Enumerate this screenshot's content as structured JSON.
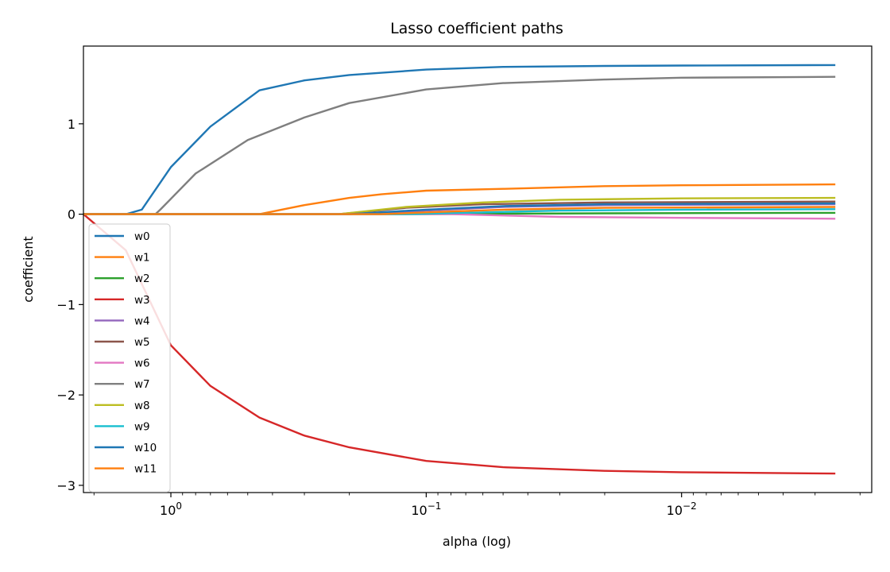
{
  "chart_data": {
    "type": "line",
    "title": "Lasso coefficient paths",
    "xlabel": "alpha (log)",
    "ylabel": "coefficient",
    "x_scale": "log",
    "x_axis_inverted": true,
    "xlim": [
      2.2,
      0.0018
    ],
    "ylim": [
      -3.08,
      1.86
    ],
    "xticks": [
      {
        "value": 1,
        "label": "10^0"
      },
      {
        "value": 0.1,
        "label": "10^-1"
      },
      {
        "value": 0.01,
        "label": "10^-2"
      }
    ],
    "yticks": [
      {
        "value": 1,
        "label": "1"
      },
      {
        "value": 0,
        "label": "0"
      },
      {
        "value": -1,
        "label": "−1"
      },
      {
        "value": -2,
        "label": "−2"
      },
      {
        "value": -3,
        "label": "−3"
      }
    ],
    "grid": false,
    "legend": {
      "position": "left",
      "fontsize": "small"
    },
    "series": [
      {
        "name": "w0",
        "color": "#1f77b4",
        "points": [
          [
            2.2,
            0
          ],
          [
            1.5,
            0
          ],
          [
            1.3,
            0.05
          ],
          [
            1.0,
            0.52
          ],
          [
            0.7,
            0.97
          ],
          [
            0.45,
            1.37
          ],
          [
            0.3,
            1.48
          ],
          [
            0.2,
            1.54
          ],
          [
            0.1,
            1.6
          ],
          [
            0.05,
            1.63
          ],
          [
            0.02,
            1.64
          ],
          [
            0.01,
            1.645
          ],
          [
            0.0025,
            1.65
          ]
        ]
      },
      {
        "name": "w1",
        "color": "#ff7f0e",
        "points": [
          [
            2.2,
            0
          ],
          [
            0.45,
            0
          ],
          [
            0.3,
            0.1
          ],
          [
            0.2,
            0.18
          ],
          [
            0.15,
            0.22
          ],
          [
            0.1,
            0.26
          ],
          [
            0.05,
            0.28
          ],
          [
            0.02,
            0.31
          ],
          [
            0.01,
            0.32
          ],
          [
            0.0025,
            0.33
          ]
        ]
      },
      {
        "name": "w2",
        "color": "#2ca02c",
        "points": [
          [
            2.2,
            0
          ],
          [
            0.1,
            0
          ],
          [
            0.05,
            0.005
          ],
          [
            0.02,
            0.01
          ],
          [
            0.0025,
            0.015
          ]
        ]
      },
      {
        "name": "w3",
        "color": "#d62728",
        "points": [
          [
            2.2,
            0
          ],
          [
            1.5,
            -0.4
          ],
          [
            1.0,
            -1.45
          ],
          [
            0.7,
            -1.9
          ],
          [
            0.45,
            -2.25
          ],
          [
            0.3,
            -2.45
          ],
          [
            0.2,
            -2.58
          ],
          [
            0.1,
            -2.73
          ],
          [
            0.05,
            -2.8
          ],
          [
            0.02,
            -2.84
          ],
          [
            0.01,
            -2.855
          ],
          [
            0.0025,
            -2.87
          ]
        ]
      },
      {
        "name": "w4",
        "color": "#9467bd",
        "points": [
          [
            2.2,
            0
          ],
          [
            0.15,
            0
          ],
          [
            0.1,
            0.04
          ],
          [
            0.05,
            0.08
          ],
          [
            0.02,
            0.1
          ],
          [
            0.0025,
            0.11
          ]
        ]
      },
      {
        "name": "w5",
        "color": "#8c564b",
        "points": [
          [
            2.2,
            0
          ],
          [
            0.22,
            0
          ],
          [
            0.12,
            0.07
          ],
          [
            0.06,
            0.11
          ],
          [
            0.02,
            0.13
          ],
          [
            0.0025,
            0.14
          ]
        ]
      },
      {
        "name": "w6",
        "color": "#e377c2",
        "points": [
          [
            2.2,
            0
          ],
          [
            0.08,
            0
          ],
          [
            0.03,
            -0.03
          ],
          [
            0.01,
            -0.04
          ],
          [
            0.0025,
            -0.05
          ]
        ]
      },
      {
        "name": "w7",
        "color": "#7f7f7f",
        "points": [
          [
            2.2,
            0
          ],
          [
            1.15,
            0
          ],
          [
            1.1,
            0.05
          ],
          [
            0.8,
            0.45
          ],
          [
            0.5,
            0.82
          ],
          [
            0.3,
            1.07
          ],
          [
            0.2,
            1.23
          ],
          [
            0.1,
            1.38
          ],
          [
            0.05,
            1.45
          ],
          [
            0.02,
            1.49
          ],
          [
            0.01,
            1.51
          ],
          [
            0.0025,
            1.52
          ]
        ]
      },
      {
        "name": "w8",
        "color": "#bcbd22",
        "points": [
          [
            2.2,
            0
          ],
          [
            0.22,
            0
          ],
          [
            0.12,
            0.08
          ],
          [
            0.06,
            0.13
          ],
          [
            0.03,
            0.16
          ],
          [
            0.01,
            0.175
          ],
          [
            0.0025,
            0.18
          ]
        ]
      },
      {
        "name": "w9",
        "color": "#17becf",
        "points": [
          [
            2.2,
            0
          ],
          [
            0.12,
            0
          ],
          [
            0.06,
            0.02
          ],
          [
            0.03,
            0.04
          ],
          [
            0.01,
            0.05
          ],
          [
            0.0025,
            0.055
          ]
        ]
      },
      {
        "name": "w10",
        "color": "#1f77b4",
        "points": [
          [
            2.2,
            0
          ],
          [
            0.2,
            0
          ],
          [
            0.1,
            0.05
          ],
          [
            0.05,
            0.09
          ],
          [
            0.02,
            0.11
          ],
          [
            0.0025,
            0.12
          ]
        ]
      },
      {
        "name": "w11",
        "color": "#ff7f0e",
        "points": [
          [
            2.2,
            0
          ],
          [
            0.15,
            0
          ],
          [
            0.1,
            0.02
          ],
          [
            0.05,
            0.05
          ],
          [
            0.02,
            0.07
          ],
          [
            0.0025,
            0.08
          ]
        ]
      }
    ]
  }
}
